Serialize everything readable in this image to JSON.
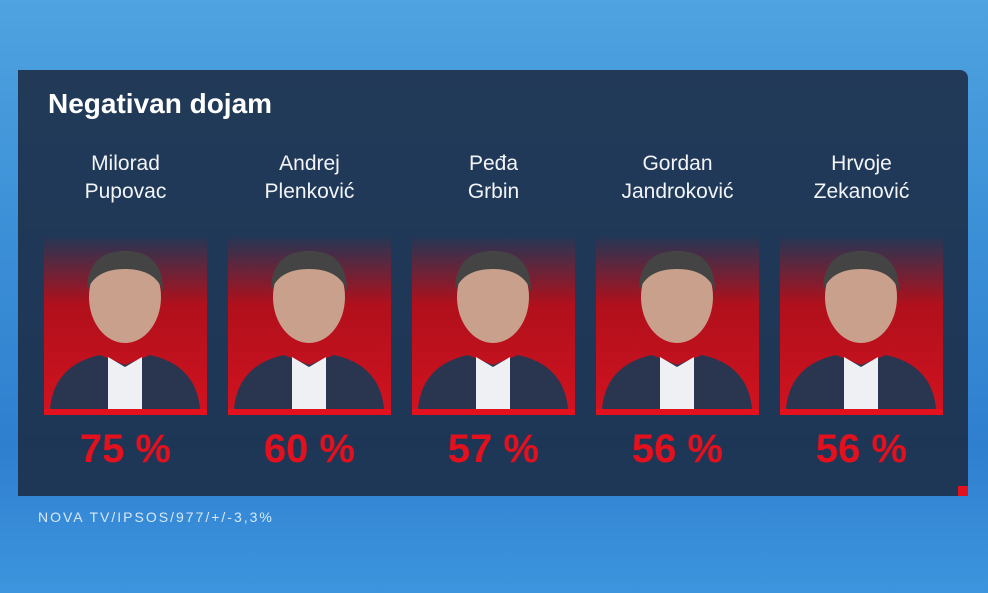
{
  "title": "Negativan dojam",
  "candidates": [
    {
      "name": [
        "Milorad",
        "Pupovac"
      ],
      "value": "75 %"
    },
    {
      "name": [
        "Andrej",
        "Plenković"
      ],
      "value": "60 %"
    },
    {
      "name": [
        "Peđa",
        "Grbin"
      ],
      "value": "57 %"
    },
    {
      "name": [
        "Gordan",
        "Jandroković"
      ],
      "value": "56 %"
    },
    {
      "name": [
        "Hrvoje",
        "Zekanović"
      ],
      "value": "56 %"
    }
  ],
  "source": "NOVA TV/IPSOS/977/+/-3,3%"
}
